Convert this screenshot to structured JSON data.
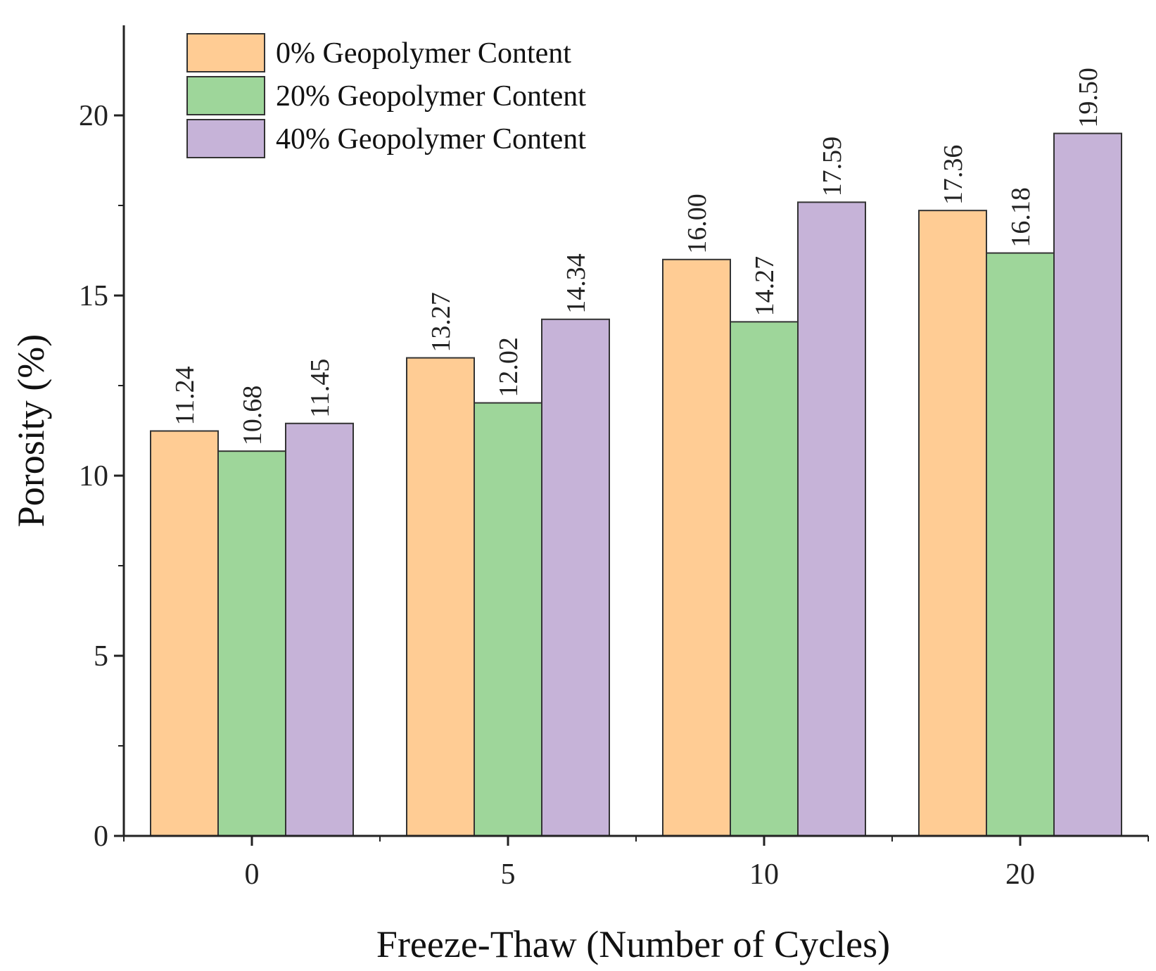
{
  "chart_data": {
    "type": "bar",
    "title": "",
    "xlabel": "Freeze-Thaw (Number of Cycles)",
    "ylabel": "Porosity (%)",
    "categories": [
      "0",
      "5",
      "10",
      "20"
    ],
    "ylim": [
      0,
      22.5
    ],
    "yticks": [
      "0",
      "5",
      "10",
      "15",
      "20"
    ],
    "grid": false,
    "legend_position": "top-left",
    "series": [
      {
        "name": "0% Geopolymer Content",
        "color": "#FFCC94",
        "values": [
          11.24,
          13.27,
          16.0,
          17.36
        ],
        "labels": [
          "11.24",
          "13.27",
          "16.00",
          "17.36"
        ]
      },
      {
        "name": "20% Geopolymer Content",
        "color": "#9ED69A",
        "values": [
          10.68,
          12.02,
          14.27,
          16.18
        ],
        "labels": [
          "10.68",
          "12.02",
          "14.27",
          "16.18"
        ]
      },
      {
        "name": "40% Geopolymer Content",
        "color": "#C6B3D8",
        "values": [
          11.45,
          14.34,
          17.59,
          19.5
        ],
        "labels": [
          "11.45",
          "14.34",
          "17.59",
          "19.50"
        ]
      }
    ]
  }
}
